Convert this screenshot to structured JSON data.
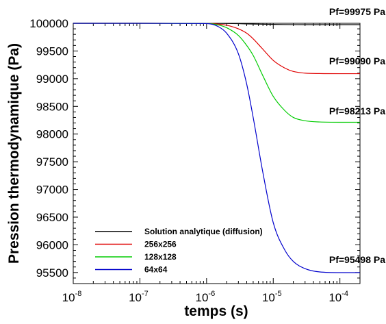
{
  "chart_data": {
    "type": "line",
    "x_scale": "log",
    "xlabel": "temps (s)",
    "ylabel": "Pression thermodynamique (Pa)",
    "xlim": [
      1e-08,
      0.0002
    ],
    "ylim": [
      95300,
      100000
    ],
    "x_ticks": [
      {
        "base": "10",
        "exp": "-8",
        "value": 1e-08
      },
      {
        "base": "10",
        "exp": "-7",
        "value": 1e-07
      },
      {
        "base": "10",
        "exp": "-6",
        "value": 1e-06
      },
      {
        "base": "10",
        "exp": "-5",
        "value": 1e-05
      },
      {
        "base": "10",
        "exp": "-4",
        "value": 0.0001
      }
    ],
    "y_ticks": [
      {
        "label": "100000",
        "value": 100000
      },
      {
        "label": "99500",
        "value": 99500
      },
      {
        "label": "99000",
        "value": 99000
      },
      {
        "label": "98500",
        "value": 98500
      },
      {
        "label": "98000",
        "value": 98000
      },
      {
        "label": "97500",
        "value": 97500
      },
      {
        "label": "97000",
        "value": 97000
      },
      {
        "label": "96500",
        "value": 96500
      },
      {
        "label": "96000",
        "value": 96000
      },
      {
        "label": "95500",
        "value": 95500
      }
    ],
    "grid": false,
    "legend_position": "bottom-left",
    "series": [
      {
        "name": "Solution analytique (diffusion)",
        "color": "#000000",
        "x": [
          1e-08,
          1e-07,
          1e-06,
          2e-06,
          3e-06,
          5e-06,
          1e-05,
          2e-05,
          5e-05,
          0.0001,
          0.0002
        ],
        "y": [
          100000,
          100000,
          99999,
          99997,
          99993,
          99986,
          99980,
          99976,
          99975,
          99975,
          99975
        ]
      },
      {
        "name": "256x256",
        "color": "#e00000",
        "x": [
          1e-08,
          1e-07,
          1e-06,
          1.5e-06,
          2e-06,
          3e-06,
          4e-06,
          5e-06,
          7e-06,
          1e-05,
          1.5e-05,
          2e-05,
          3e-05,
          5e-05,
          0.0001,
          0.0002
        ],
        "y": [
          100000,
          100000,
          99998,
          99985,
          99965,
          99900,
          99820,
          99720,
          99530,
          99330,
          99190,
          99130,
          99100,
          99092,
          99090,
          99090
        ]
      },
      {
        "name": "128x128",
        "color": "#00cc00",
        "x": [
          1e-08,
          1e-07,
          1e-06,
          1.5e-06,
          2e-06,
          3e-06,
          4e-06,
          5e-06,
          7e-06,
          1e-05,
          1.5e-05,
          2e-05,
          3e-05,
          5e-05,
          0.0001,
          0.0002
        ],
        "y": [
          100000,
          100000,
          99997,
          99970,
          99920,
          99780,
          99600,
          99420,
          99050,
          98680,
          98420,
          98300,
          98240,
          98218,
          98213,
          98213
        ]
      },
      {
        "name": "64x64",
        "color": "#0000cc",
        "x": [
          1e-08,
          1e-07,
          1e-06,
          1.5e-06,
          2e-06,
          3e-06,
          4e-06,
          5e-06,
          7e-06,
          1e-05,
          1.5e-05,
          2e-05,
          3e-05,
          5e-05,
          0.0001,
          0.0002
        ],
        "y": [
          100000,
          100000,
          99995,
          99940,
          99820,
          99450,
          98900,
          98300,
          97300,
          96400,
          95900,
          95700,
          95570,
          95510,
          95498,
          95498
        ]
      }
    ],
    "annotations": [
      {
        "text": "Pf=99975 Pa",
        "x": 0.0001,
        "y": 99975
      },
      {
        "text": "Pf=99090 Pa",
        "x": 0.0001,
        "y": 99090
      },
      {
        "text": "Pf=98213 Pa",
        "x": 0.0001,
        "y": 98213
      },
      {
        "text": "Pf=95498 Pa",
        "x": 0.0001,
        "y": 95498
      }
    ]
  }
}
